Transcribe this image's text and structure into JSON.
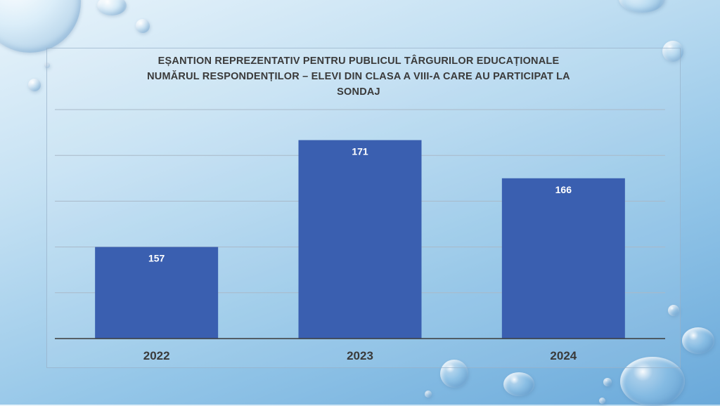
{
  "chart_data": {
    "type": "bar",
    "title_lines": [
      "EȘANTION REPREZENTATIV PENTRU PUBLICUL TÂRGURILOR EDUCAȚIONALE",
      "NUMĂRUL RESPONDENȚILOR – ELEVI DIN CLASA A VIII-A CARE AU PARTICIPAT LA",
      "SONDAJ"
    ],
    "categories": [
      "2022",
      "2023",
      "2024"
    ],
    "values": [
      157,
      171,
      166
    ],
    "ylim": [
      145,
      175
    ],
    "gridlines": [
      145,
      151,
      157,
      163,
      169,
      175
    ],
    "grid": true,
    "legend": "none",
    "bar_color": "#3a5fb0",
    "label_color": "#ffffff"
  }
}
